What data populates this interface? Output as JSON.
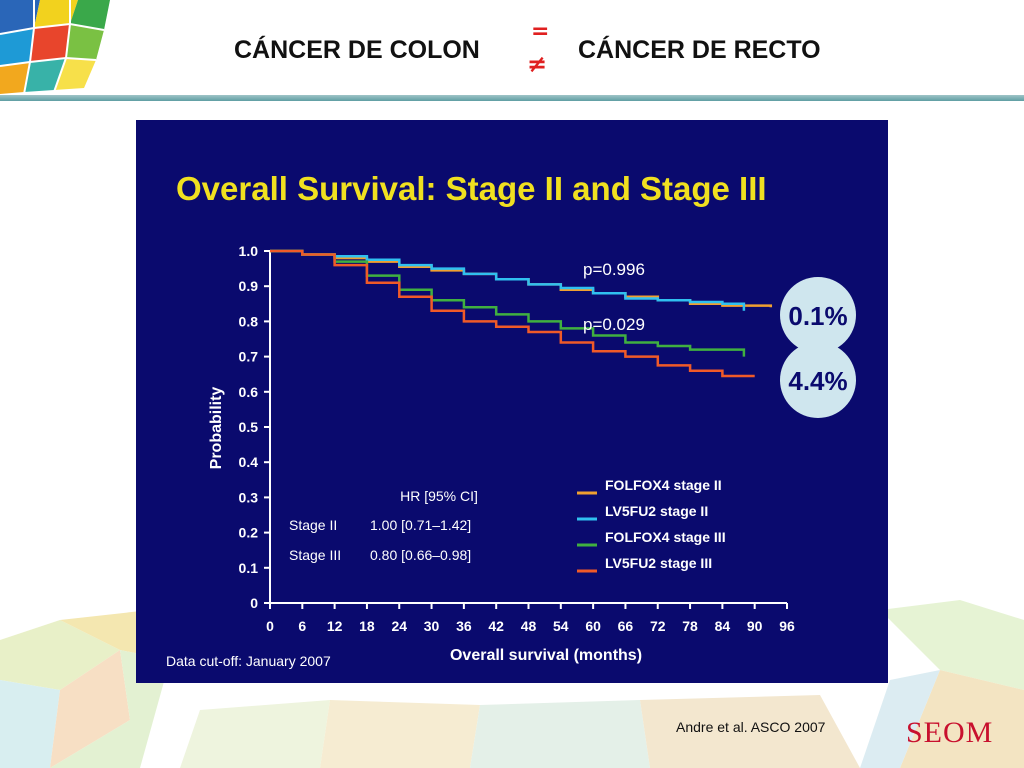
{
  "header": {
    "title_left": "CÁNCER DE COLON",
    "symbol_top": "=",
    "symbol_bottom": "≠",
    "title_right": "CÁNCER DE RECTO"
  },
  "footer": {
    "citation": "Andre et al. ASCO 2007",
    "logo_text": "SEOM"
  },
  "colors": {
    "panel_bg": "#0a0a6e",
    "title_yellow": "#f0e020",
    "axis_white": "#ffffff",
    "circle_fill": "#cfe6ee",
    "accent_red": "#e02020"
  },
  "chart_data": {
    "type": "line",
    "title": "Overall Survival: Stage II and Stage III",
    "xlabel": "Overall survival (months)",
    "ylabel": "Probability",
    "xlim": [
      0,
      96
    ],
    "ylim": [
      0,
      1.0
    ],
    "x_ticks": [
      "0",
      "6",
      "12",
      "18",
      "24",
      "30",
      "36",
      "42",
      "48",
      "54",
      "60",
      "66",
      "72",
      "78",
      "84",
      "90",
      "96"
    ],
    "y_ticks": [
      "0",
      "0.1",
      "0.2",
      "0.3",
      "0.4",
      "0.5",
      "0.6",
      "0.7",
      "0.8",
      "0.9",
      "1.0"
    ],
    "grid": false,
    "legend_position": "bottom-right",
    "series": [
      {
        "name": "FOLFOX4 stage II",
        "color": "#f0a030",
        "x": [
          0,
          6,
          12,
          18,
          24,
          30,
          36,
          42,
          48,
          54,
          60,
          66,
          72,
          78,
          84,
          90,
          93
        ],
        "y": [
          1.0,
          0.99,
          0.98,
          0.97,
          0.955,
          0.945,
          0.935,
          0.92,
          0.905,
          0.89,
          0.88,
          0.87,
          0.86,
          0.85,
          0.845,
          0.845,
          0.84
        ]
      },
      {
        "name": "LV5FU2 stage II",
        "color": "#30c0f0",
        "x": [
          0,
          6,
          12,
          18,
          24,
          30,
          36,
          42,
          48,
          54,
          60,
          66,
          72,
          78,
          84,
          88
        ],
        "y": [
          1.0,
          0.99,
          0.985,
          0.975,
          0.96,
          0.95,
          0.935,
          0.92,
          0.905,
          0.895,
          0.88,
          0.865,
          0.86,
          0.855,
          0.85,
          0.83
        ]
      },
      {
        "name": "FOLFOX4 stage III",
        "color": "#40b040",
        "x": [
          0,
          6,
          12,
          18,
          24,
          30,
          36,
          42,
          48,
          54,
          60,
          66,
          72,
          78,
          84,
          87,
          88
        ],
        "y": [
          1.0,
          0.99,
          0.97,
          0.93,
          0.89,
          0.86,
          0.84,
          0.82,
          0.8,
          0.78,
          0.76,
          0.74,
          0.73,
          0.72,
          0.72,
          0.72,
          0.7
        ]
      },
      {
        "name": "LV5FU2 stage III",
        "color": "#f05a28",
        "x": [
          0,
          6,
          12,
          18,
          24,
          30,
          36,
          42,
          48,
          54,
          60,
          66,
          72,
          78,
          84,
          90
        ],
        "y": [
          1.0,
          0.99,
          0.96,
          0.91,
          0.87,
          0.83,
          0.8,
          0.785,
          0.77,
          0.74,
          0.715,
          0.7,
          0.675,
          0.66,
          0.645,
          0.645
        ]
      }
    ],
    "annotations": {
      "p_stage2": "p=0.996",
      "p_stage3": "p=0.029",
      "diff_stage2": "0.1%",
      "diff_stage3": "4.4%",
      "cutoff": "Data cut-off: January 2007"
    },
    "hr_table": {
      "header": "HR [95% CI]",
      "rows": [
        {
          "label": "Stage II",
          "value": "1.00 [0.71–1.42]"
        },
        {
          "label": "Stage III",
          "value": "0.80 [0.66–0.98]"
        }
      ]
    }
  }
}
